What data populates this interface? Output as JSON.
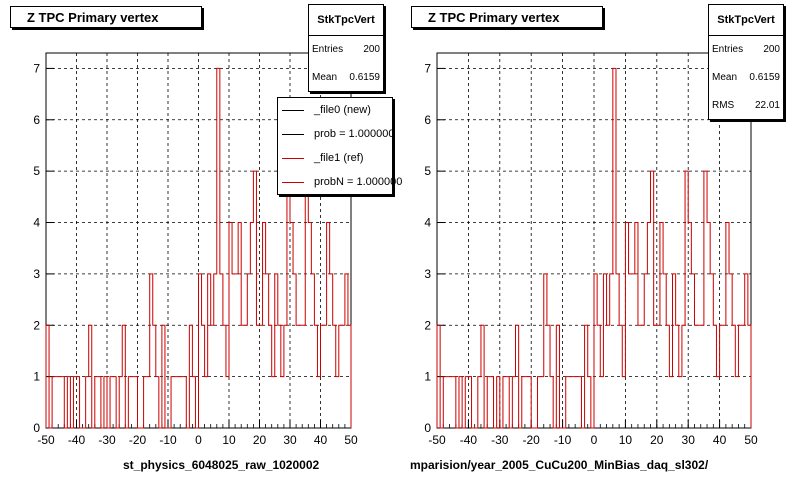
{
  "colors": {
    "new": "#000000",
    "ref": "#cc0000",
    "grid": "#000000",
    "frame": "#000000"
  },
  "panels": [
    {
      "title": "Z TPC Primary vertex",
      "stats": {
        "name": "StkTpcVert",
        "rows": [
          {
            "label": "Entries",
            "value": "200"
          },
          {
            "label": "Mean",
            "value": "0.6159"
          }
        ]
      },
      "legend": [
        {
          "label": "_file0 (new)",
          "color": "#000000"
        },
        {
          "label": "prob = 1.000000",
          "color": "#000000"
        },
        {
          "label": "_file1 (ref)",
          "color": "#cc0000"
        },
        {
          "label": "probN = 1.000000",
          "color": "#cc0000"
        }
      ],
      "footer": "st_physics_6048025_raw_1020002"
    },
    {
      "title": "Z TPC Primary vertex",
      "stats": {
        "name": "StkTpcVert",
        "rows": [
          {
            "label": "Entries",
            "value": "200"
          },
          {
            "label": "Mean",
            "value": "0.6159"
          },
          {
            "label": "RMS",
            "value": "22.01"
          }
        ]
      },
      "footer": "mparision/year_2005_CuCu200_MinBias_daq_sl302/"
    }
  ],
  "chart_data": [
    {
      "type": "bar",
      "title": "Z TPC Primary vertex",
      "xlabel": "st_physics_6048025_raw_1020002",
      "ylabel": "",
      "xlim": [
        -50,
        50
      ],
      "ylim": [
        0,
        7.3
      ],
      "xticks": [
        "-50",
        "-40",
        "-30",
        "-20",
        "-10",
        "0",
        "10",
        "20",
        "30",
        "40",
        "50"
      ],
      "yticks": [
        "0",
        "1",
        "2",
        "3",
        "4",
        "5",
        "6",
        "7"
      ],
      "grid": true,
      "legend_position": "top-right",
      "histogram": {
        "x_start": -50,
        "x_end": 50,
        "bins": 100
      },
      "series": [
        {
          "name": "_file1 (ref)",
          "color": "#cc0000",
          "values": [
            2,
            0,
            1,
            1,
            1,
            1,
            0,
            1,
            0,
            1,
            1,
            0,
            0,
            1,
            2,
            0,
            1,
            1,
            0,
            1,
            0,
            1,
            1,
            0,
            1,
            2,
            0,
            1,
            1,
            1,
            0,
            0,
            1,
            1,
            3,
            2,
            1,
            0,
            2,
            0,
            0,
            1,
            1,
            1,
            1,
            1,
            0,
            2,
            1,
            0,
            3,
            2,
            1,
            3,
            2,
            3,
            7,
            3,
            2,
            1,
            4,
            3,
            3,
            4,
            2,
            2,
            3,
            4,
            5,
            2,
            2,
            4,
            3,
            2,
            1,
            3,
            2,
            1,
            2,
            5,
            4,
            3,
            2,
            2,
            2,
            5,
            4,
            3,
            2,
            1,
            2,
            2,
            4,
            3,
            2,
            1,
            2,
            2,
            3,
            2
          ]
        }
      ]
    },
    {
      "type": "bar",
      "title": "Z TPC Primary vertex",
      "xlabel": "mparision/year_2005_CuCu200_MinBias_daq_sl302/",
      "ylabel": "",
      "xlim": [
        -50,
        50
      ],
      "ylim": [
        0,
        7.3
      ],
      "xticks": [
        "-50",
        "-40",
        "-30",
        "-20",
        "-10",
        "0",
        "10",
        "20",
        "30",
        "40",
        "50"
      ],
      "yticks": [
        "0",
        "1",
        "2",
        "3",
        "4",
        "5",
        "6",
        "7"
      ],
      "grid": true,
      "histogram": {
        "x_start": -50,
        "x_end": 50,
        "bins": 100
      },
      "series": [
        {
          "name": "",
          "color": "#cc0000",
          "values": [
            2,
            0,
            1,
            1,
            1,
            1,
            0,
            1,
            0,
            1,
            1,
            0,
            0,
            1,
            2,
            0,
            1,
            1,
            0,
            1,
            0,
            1,
            1,
            0,
            1,
            2,
            0,
            1,
            1,
            1,
            0,
            0,
            1,
            1,
            3,
            2,
            1,
            0,
            2,
            0,
            0,
            1,
            1,
            1,
            1,
            1,
            0,
            2,
            1,
            0,
            3,
            2,
            1,
            3,
            2,
            3,
            7,
            3,
            2,
            1,
            4,
            3,
            3,
            4,
            2,
            2,
            3,
            4,
            5,
            2,
            2,
            4,
            3,
            2,
            1,
            3,
            2,
            1,
            2,
            5,
            4,
            3,
            2,
            2,
            2,
            5,
            4,
            3,
            2,
            1,
            2,
            2,
            4,
            3,
            2,
            1,
            2,
            2,
            3,
            2
          ]
        }
      ]
    }
  ]
}
